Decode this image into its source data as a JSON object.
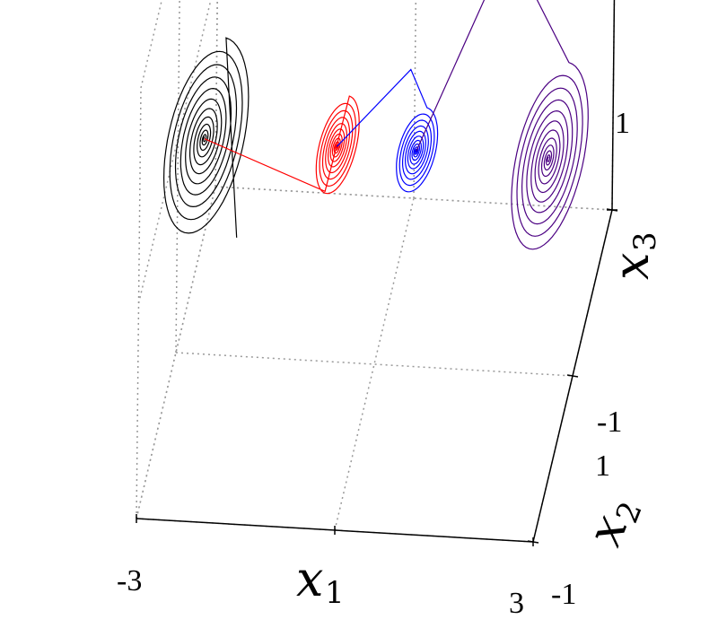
{
  "chart_data": {
    "type": "line",
    "subtype": "3d-trajectory",
    "title": "",
    "axes": {
      "x": {
        "label": "x",
        "subscript": "1",
        "ticks": [
          "-3",
          "3"
        ],
        "range": [
          -3,
          3
        ]
      },
      "y": {
        "label": "x",
        "subscript": "2",
        "ticks": [
          "-1",
          "1"
        ],
        "range": [
          -1,
          1
        ]
      },
      "z": {
        "label": "x",
        "subscript": "3",
        "ticks": [
          "-1",
          "1"
        ],
        "range": [
          -1,
          1
        ]
      }
    },
    "grid": true,
    "legend": "none",
    "series": [
      {
        "color": "#000000",
        "center": [
          -2.6,
          0,
          0
        ]
      },
      {
        "color": "#ff0000",
        "center": [
          -0.6,
          0,
          0
        ]
      },
      {
        "color": "#0000ff",
        "center": [
          0.6,
          0,
          0
        ]
      },
      {
        "color": "#4b0082",
        "center": [
          2.6,
          0,
          0
        ]
      }
    ]
  }
}
